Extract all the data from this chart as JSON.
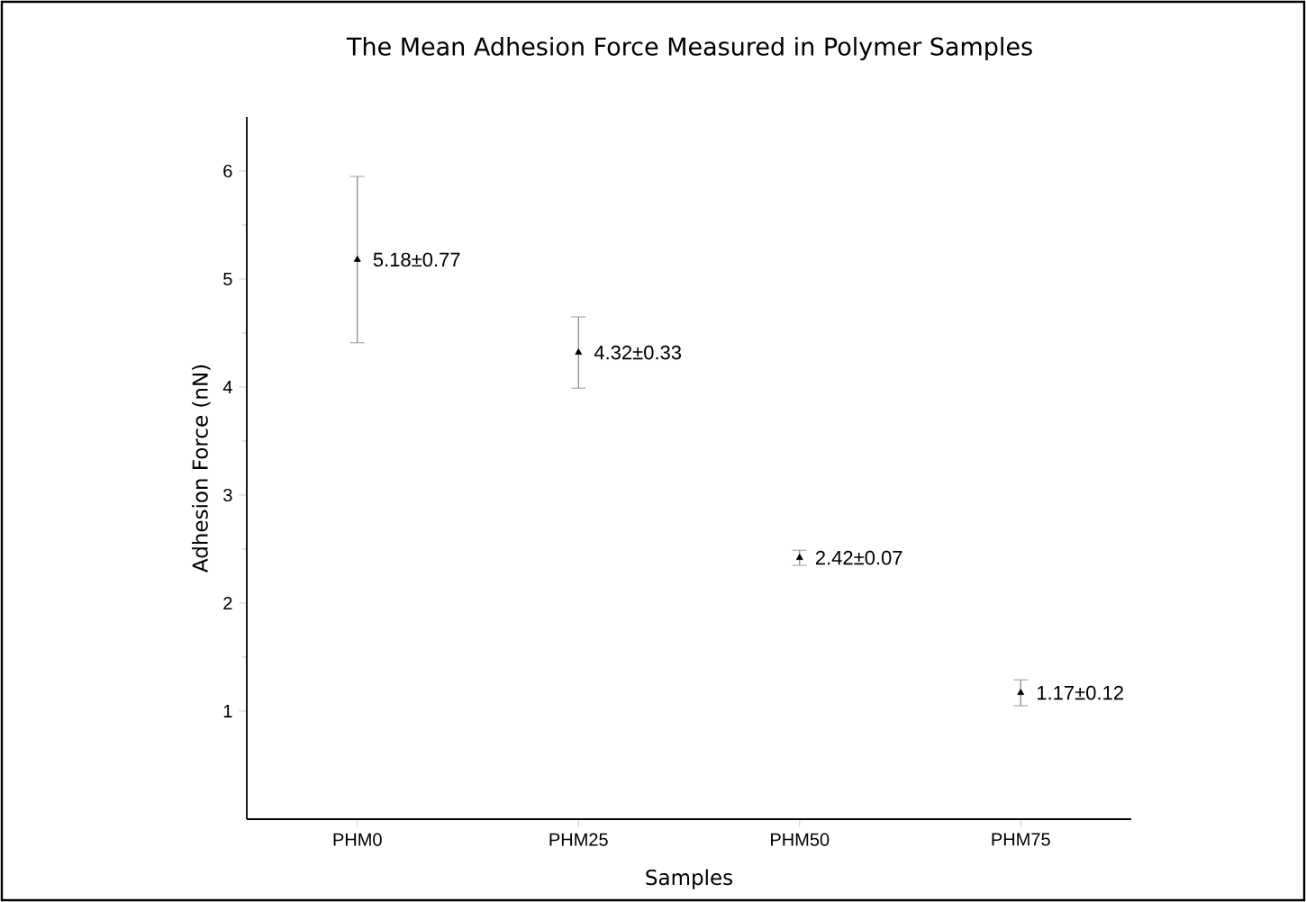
{
  "chart_data": {
    "type": "scatter",
    "title": "The Mean Adhesion Force Measured in Polymer Samples",
    "xlabel": "Samples",
    "ylabel": "Adhesion Force (nN)",
    "categories": [
      "PHM0",
      "PHM25",
      "PHM50",
      "PHM75"
    ],
    "values": [
      5.18,
      4.32,
      2.42,
      1.17
    ],
    "errors": [
      0.77,
      0.33,
      0.07,
      0.12
    ],
    "value_labels": [
      "5.18±0.77",
      "4.32±0.33",
      "2.42±0.07",
      "1.17±0.12"
    ],
    "color": "#000000",
    "marker": "triangle",
    "ylim": [
      0,
      6.5
    ],
    "yticks": [
      1,
      2,
      3,
      4,
      5,
      6
    ]
  }
}
